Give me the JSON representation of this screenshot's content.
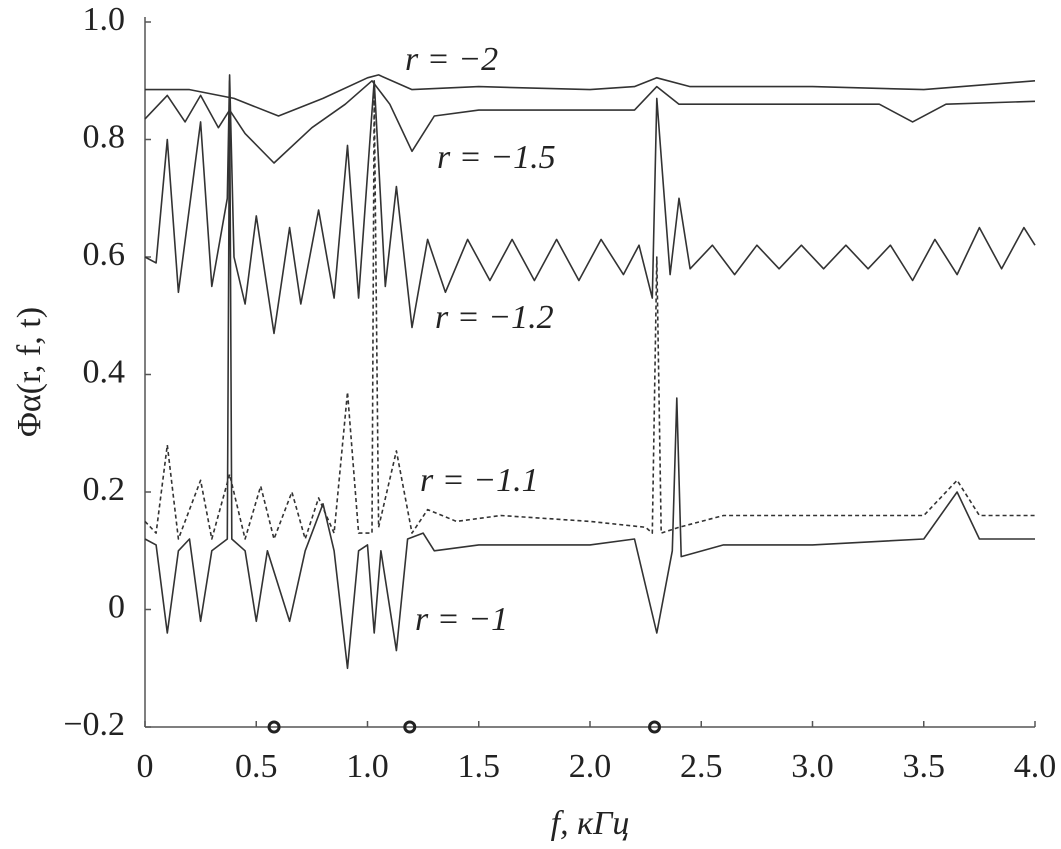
{
  "chart_data": {
    "type": "line",
    "xlabel": "f, кГц",
    "ylabel": "Φα(r, f, t)",
    "xlim": [
      0,
      4.0
    ],
    "ylim": [
      -0.2,
      1.0
    ],
    "xticks": [
      0,
      0.5,
      {
        "value": 1.0,
        "label": "1.0"
      },
      1.5,
      {
        "value": 2.0,
        "label": "2.0"
      },
      2.5,
      {
        "value": 3.0,
        "label": "3.0"
      },
      3.5,
      {
        "value": 4.0,
        "label": "4.0"
      }
    ],
    "yticks": [
      {
        "value": -0.2,
        "label": "−0.2"
      },
      0,
      0.2,
      0.4,
      0.6,
      0.8,
      {
        "value": 1.0,
        "label": "1.0"
      }
    ],
    "markers_x": [
      0.58,
      1.19,
      2.29
    ],
    "series": [
      {
        "name": "r = −2",
        "color": "#333333",
        "style": "solid",
        "x": [
          0,
          0.2,
          0.4,
          0.6,
          0.8,
          1.0,
          1.05,
          1.2,
          1.5,
          2.0,
          2.2,
          2.3,
          2.45,
          3.0,
          3.5,
          4.0
        ],
        "values": [
          0.885,
          0.885,
          0.87,
          0.84,
          0.87,
          0.905,
          0.91,
          0.885,
          0.89,
          0.885,
          0.89,
          0.905,
          0.89,
          0.89,
          0.885,
          0.9
        ]
      },
      {
        "name": "r = −1.5",
        "color": "#333333",
        "style": "solid",
        "x": [
          0,
          0.1,
          0.18,
          0.25,
          0.33,
          0.38,
          0.45,
          0.58,
          0.75,
          0.9,
          1.02,
          1.1,
          1.2,
          1.3,
          1.5,
          2.2,
          2.3,
          2.4,
          3.3,
          3.45,
          3.6,
          4.0
        ],
        "values": [
          0.835,
          0.875,
          0.83,
          0.875,
          0.82,
          0.85,
          0.81,
          0.76,
          0.82,
          0.86,
          0.9,
          0.86,
          0.78,
          0.84,
          0.85,
          0.85,
          0.89,
          0.86,
          0.86,
          0.83,
          0.86,
          0.865
        ]
      },
      {
        "name": "r = −1.2",
        "color": "#333333",
        "style": "solid",
        "x": [
          0,
          0.05,
          0.1,
          0.15,
          0.25,
          0.3,
          0.37,
          0.38,
          0.4,
          0.45,
          0.5,
          0.58,
          0.65,
          0.7,
          0.78,
          0.85,
          0.91,
          0.96,
          1.03,
          1.08,
          1.13,
          1.2,
          1.27,
          1.35,
          1.45,
          1.55,
          1.65,
          1.75,
          1.85,
          1.95,
          2.05,
          2.15,
          2.22,
          2.28,
          2.3,
          2.36,
          2.4,
          2.45,
          2.55,
          2.65,
          2.75,
          2.85,
          2.95,
          3.05,
          3.15,
          3.25,
          3.35,
          3.45,
          3.55,
          3.65,
          3.75,
          3.85,
          3.95,
          4.0
        ],
        "values": [
          0.6,
          0.59,
          0.8,
          0.54,
          0.83,
          0.55,
          0.7,
          0.91,
          0.6,
          0.52,
          0.67,
          0.47,
          0.65,
          0.52,
          0.68,
          0.53,
          0.79,
          0.53,
          0.9,
          0.55,
          0.72,
          0.48,
          0.63,
          0.54,
          0.63,
          0.56,
          0.63,
          0.56,
          0.63,
          0.56,
          0.63,
          0.57,
          0.62,
          0.53,
          0.87,
          0.57,
          0.7,
          0.58,
          0.62,
          0.57,
          0.62,
          0.58,
          0.62,
          0.58,
          0.62,
          0.58,
          0.62,
          0.56,
          0.63,
          0.57,
          0.65,
          0.58,
          0.65,
          0.62
        ]
      },
      {
        "name": "r = −1.1",
        "color": "#333333",
        "style": "dashed",
        "x": [
          0,
          0.05,
          0.1,
          0.15,
          0.25,
          0.3,
          0.38,
          0.45,
          0.52,
          0.58,
          0.66,
          0.72,
          0.78,
          0.85,
          0.91,
          0.96,
          1.02,
          1.03,
          1.05,
          1.13,
          1.2,
          1.27,
          1.4,
          1.6,
          2.0,
          2.25,
          2.28,
          2.3,
          2.32,
          2.4,
          2.6,
          3.0,
          3.5,
          3.65,
          3.75,
          4.0
        ],
        "values": [
          0.15,
          0.13,
          0.28,
          0.12,
          0.22,
          0.12,
          0.23,
          0.12,
          0.21,
          0.12,
          0.2,
          0.12,
          0.19,
          0.13,
          0.37,
          0.13,
          0.13,
          0.88,
          0.14,
          0.27,
          0.13,
          0.17,
          0.15,
          0.16,
          0.15,
          0.14,
          0.13,
          0.6,
          0.13,
          0.14,
          0.16,
          0.16,
          0.16,
          0.22,
          0.16,
          0.16
        ]
      },
      {
        "name": "r = −1",
        "color": "#333333",
        "style": "solid",
        "x": [
          0,
          0.05,
          0.1,
          0.15,
          0.2,
          0.25,
          0.3,
          0.37,
          0.38,
          0.39,
          0.45,
          0.5,
          0.55,
          0.65,
          0.72,
          0.8,
          0.85,
          0.91,
          0.96,
          1.0,
          1.03,
          1.06,
          1.13,
          1.18,
          1.25,
          1.3,
          1.5,
          2.0,
          2.2,
          2.3,
          2.37,
          2.39,
          2.41,
          2.6,
          3.0,
          3.5,
          3.65,
          3.75,
          4.0
        ],
        "values": [
          0.12,
          0.11,
          -0.04,
          0.1,
          0.12,
          -0.02,
          0.1,
          0.12,
          0.9,
          0.12,
          0.1,
          -0.02,
          0.1,
          -0.02,
          0.1,
          0.18,
          0.1,
          -0.1,
          0.1,
          0.11,
          -0.04,
          0.1,
          -0.07,
          0.12,
          0.13,
          0.1,
          0.11,
          0.11,
          0.12,
          -0.04,
          0.1,
          0.36,
          0.09,
          0.11,
          0.11,
          0.12,
          0.2,
          0.12,
          0.12
        ]
      }
    ]
  }
}
